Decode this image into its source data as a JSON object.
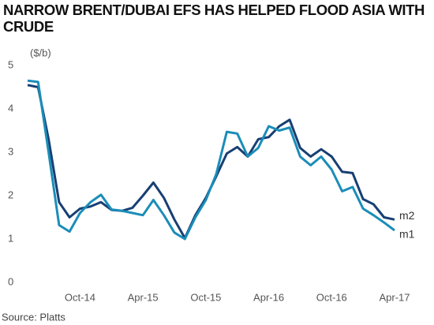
{
  "chart_data": {
    "type": "line",
    "title": "NARROW BRENT/DUBAI EFS HAS HELPED FLOOD ASIA WITH CRUDE",
    "y_axis_label": "($/b)",
    "source": "Source: Platts",
    "categories": [
      null,
      null,
      null,
      null,
      null,
      "Oct-14",
      null,
      null,
      null,
      null,
      null,
      "Apr-15",
      null,
      null,
      null,
      null,
      null,
      "Oct-15",
      null,
      null,
      null,
      null,
      null,
      "Apr-16",
      null,
      null,
      null,
      null,
      null,
      "Oct-16",
      null,
      null,
      null,
      null,
      null,
      "Apr-17"
    ],
    "series": [
      {
        "name": "m2",
        "color": "#173f73",
        "values": [
          4.55,
          4.5,
          3.3,
          1.85,
          1.5,
          1.7,
          1.75,
          1.85,
          1.67,
          1.65,
          1.72,
          2.0,
          2.3,
          1.95,
          1.45,
          1.02,
          1.55,
          1.95,
          2.45,
          2.97,
          3.12,
          2.9,
          3.3,
          3.35,
          3.6,
          3.75,
          3.1,
          2.9,
          3.07,
          2.9,
          2.55,
          2.52,
          1.92,
          1.8,
          1.5,
          1.45
        ]
      },
      {
        "name": "m1",
        "color": "#1b8db8",
        "values": [
          4.65,
          4.62,
          3.0,
          1.32,
          1.17,
          1.6,
          1.85,
          2.02,
          1.68,
          1.65,
          1.6,
          1.55,
          1.9,
          1.55,
          1.15,
          1.0,
          1.5,
          1.9,
          2.5,
          3.47,
          3.43,
          2.9,
          3.1,
          3.6,
          3.5,
          3.57,
          2.9,
          2.7,
          2.9,
          2.6,
          2.1,
          2.2,
          1.7,
          1.55,
          1.38,
          1.2
        ]
      }
    ],
    "ylim": [
      0,
      5
    ],
    "yticks": [
      0,
      1,
      2,
      3,
      4,
      5
    ],
    "grid": false
  }
}
